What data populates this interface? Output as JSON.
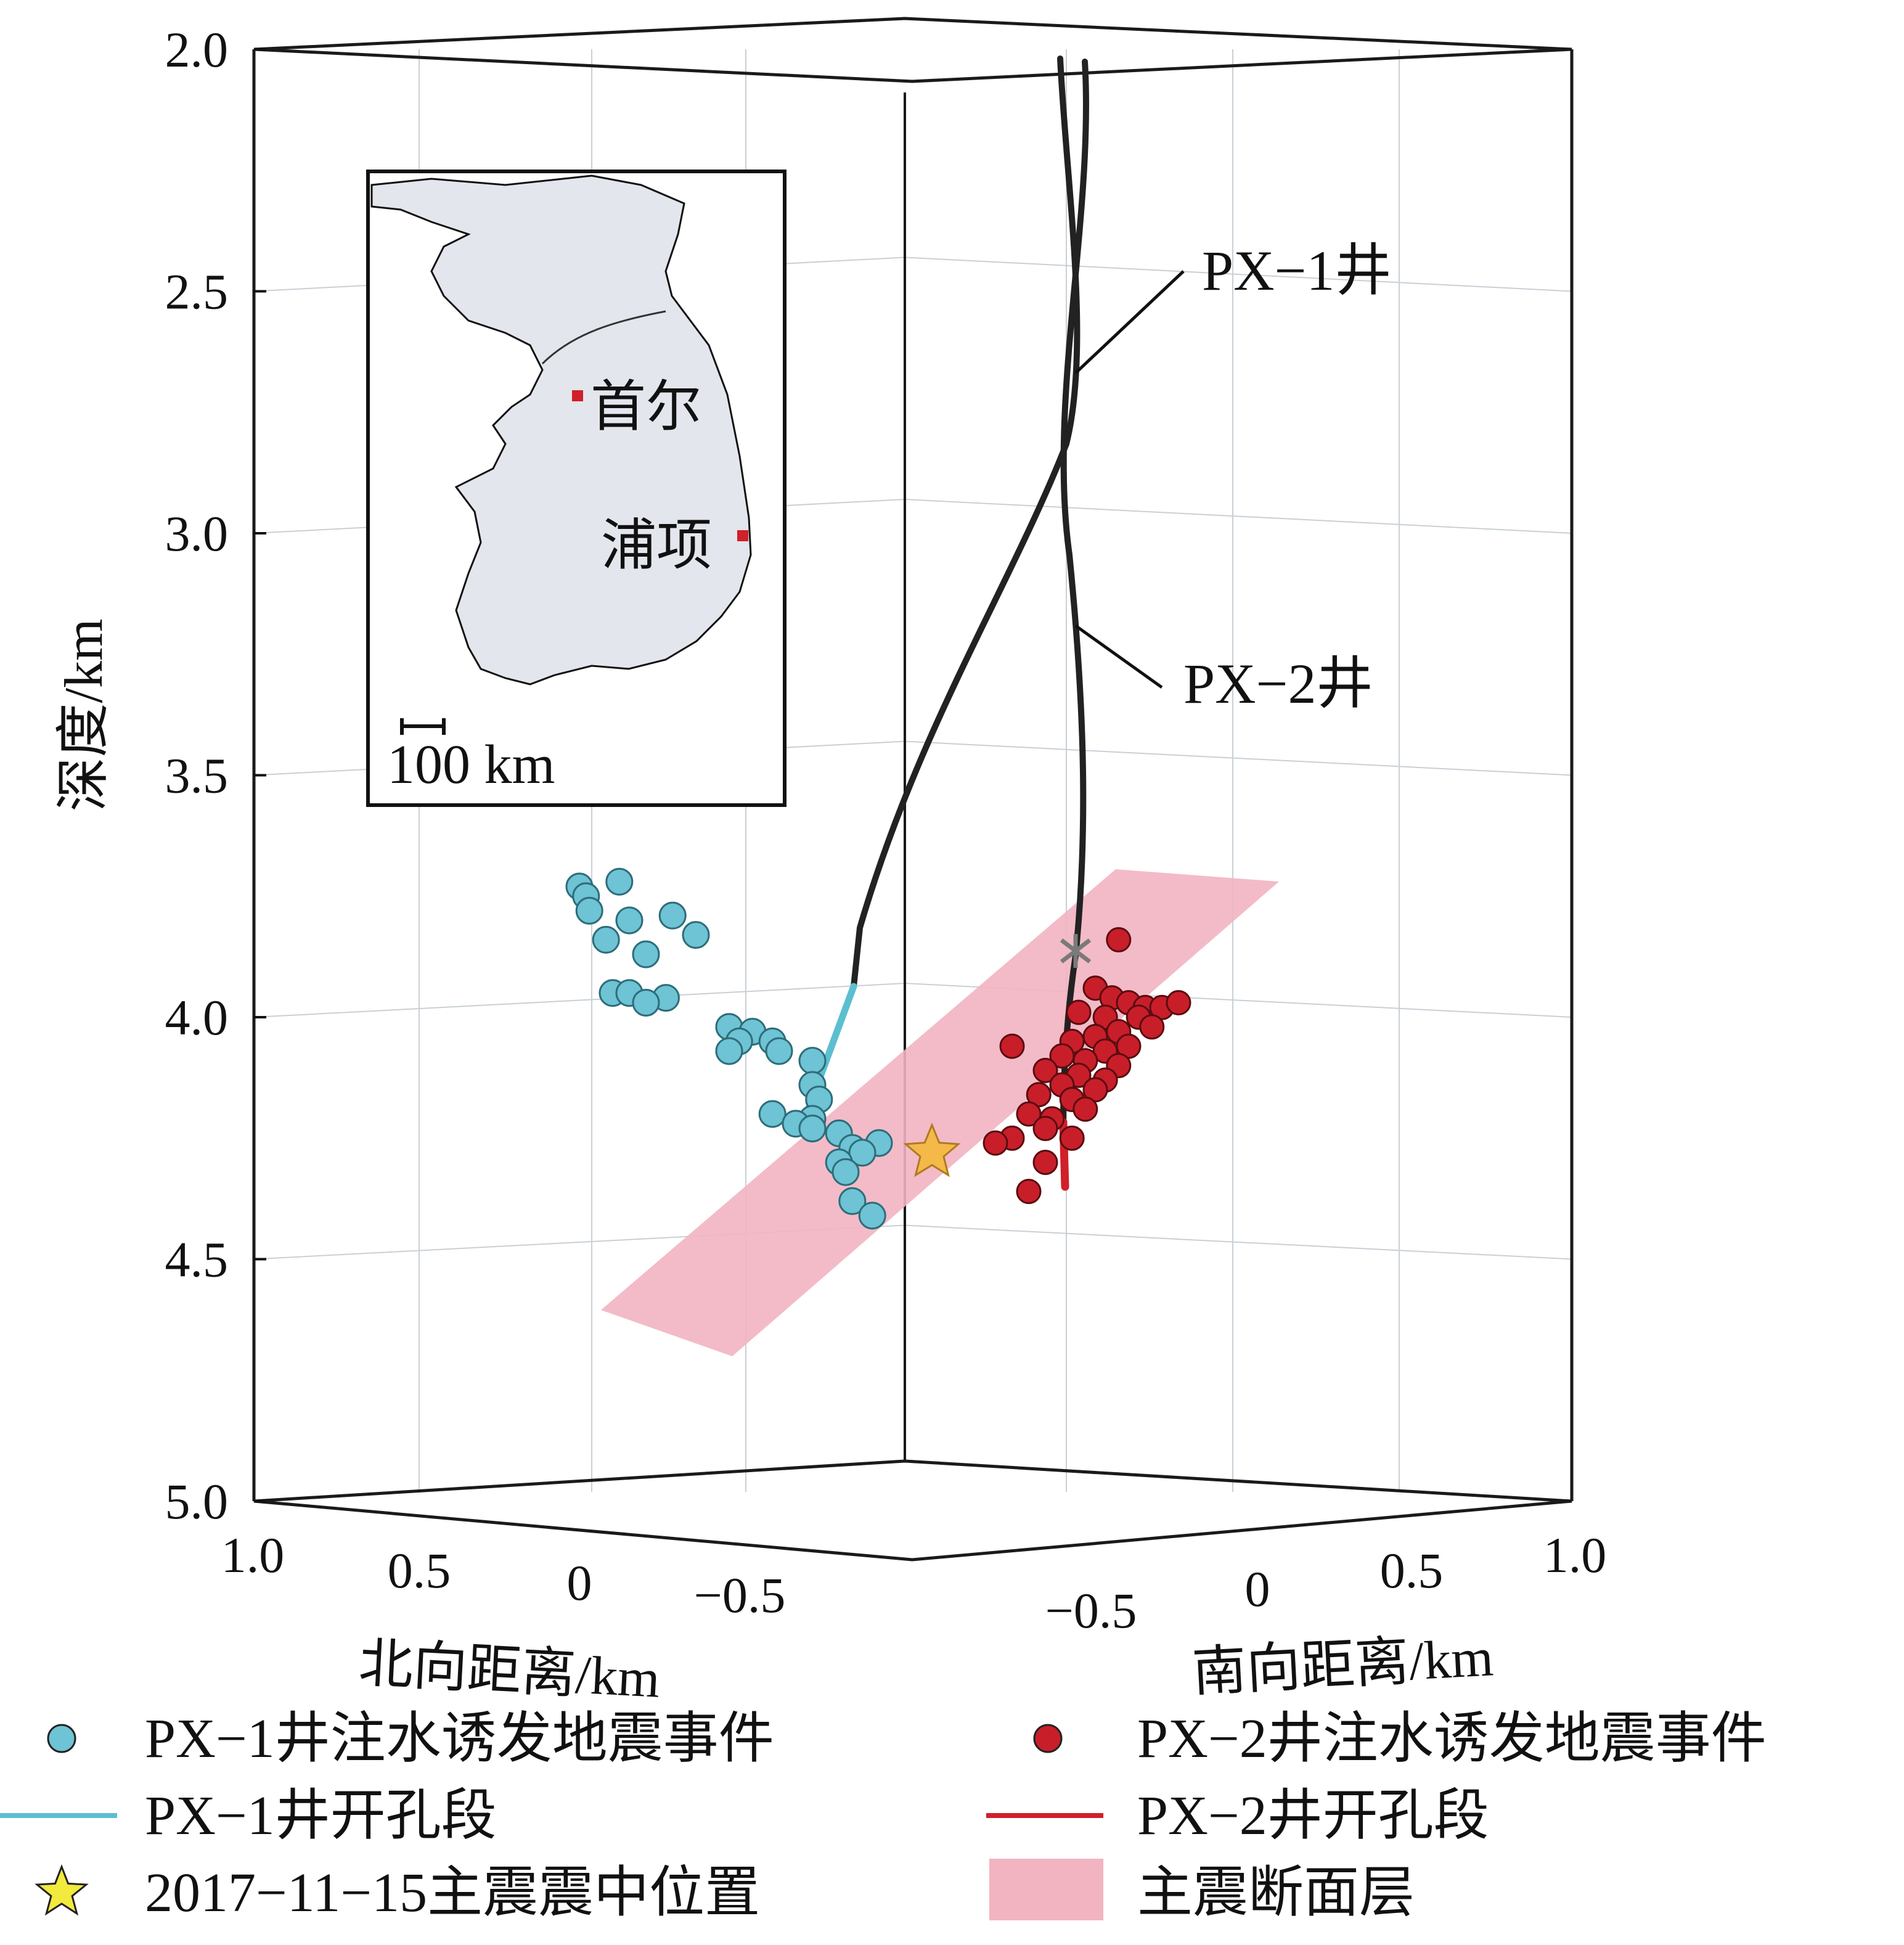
{
  "chart_data": {
    "type": "scatter",
    "projection": "3d-box",
    "z_axis": {
      "label": "深度/km",
      "range": [
        2.0,
        5.0
      ],
      "ticks": [
        "2.0",
        "2.5",
        "3.0",
        "3.5",
        "4.0",
        "4.5",
        "5.0"
      ]
    },
    "x_axis_north": {
      "label": "北向距离/km",
      "range": [
        1.0,
        -0.5
      ],
      "ticks": [
        "1.0",
        "0.5",
        "0",
        "−0.5"
      ]
    },
    "x_axis_south": {
      "label": "南向距离/km",
      "range": [
        -0.5,
        1.0
      ],
      "ticks": [
        "−0.5",
        "0",
        "0.5",
        "1.0"
      ]
    },
    "inset": {
      "cities": [
        {
          "name": "首尔",
          "color": "#d0202a"
        },
        {
          "name": "浦项",
          "color": "#d0202a"
        }
      ],
      "scale_bar": "100 km"
    },
    "wells": [
      {
        "name": "PX-1井",
        "label": "PX−1井",
        "open_hole_color": "#5bbfd0"
      },
      {
        "name": "PX-2井",
        "label": "PX−2井",
        "open_hole_color": "#d0202a"
      }
    ],
    "series": [
      {
        "name": "PX−1井注水诱发地震事件",
        "color": "#6ec3d4",
        "points": [
          [
            1.0,
            3.73
          ],
          [
            0.98,
            3.75
          ],
          [
            0.97,
            3.78
          ],
          [
            0.88,
            3.72
          ],
          [
            0.85,
            3.8
          ],
          [
            0.72,
            3.79
          ],
          [
            0.8,
            3.87
          ],
          [
            0.65,
            3.83
          ],
          [
            0.92,
            3.84
          ],
          [
            0.9,
            3.95
          ],
          [
            0.85,
            3.95
          ],
          [
            0.74,
            3.96
          ],
          [
            0.8,
            3.97
          ],
          [
            0.55,
            4.02
          ],
          [
            0.48,
            4.03
          ],
          [
            0.52,
            4.05
          ],
          [
            0.42,
            4.05
          ],
          [
            0.55,
            4.07
          ],
          [
            0.4,
            4.07
          ],
          [
            0.3,
            4.09
          ],
          [
            0.3,
            4.14
          ],
          [
            0.28,
            4.17
          ],
          [
            0.3,
            4.21
          ],
          [
            0.42,
            4.2
          ],
          [
            0.35,
            4.22
          ],
          [
            0.3,
            4.23
          ],
          [
            0.22,
            4.24
          ],
          [
            0.18,
            4.27
          ],
          [
            0.1,
            4.26
          ],
          [
            0.15,
            4.28
          ],
          [
            0.22,
            4.3
          ],
          [
            0.2,
            4.32
          ],
          [
            0.18,
            4.38
          ],
          [
            0.12,
            4.41
          ]
        ]
      },
      {
        "name": "PX−2井注水诱发地震事件",
        "color": "#c81e2a",
        "points": [
          [
            -0.62,
            3.84
          ],
          [
            -0.55,
            3.94
          ],
          [
            -0.6,
            3.96
          ],
          [
            -0.65,
            3.97
          ],
          [
            -0.7,
            3.98
          ],
          [
            -0.75,
            3.98
          ],
          [
            -0.8,
            3.97
          ],
          [
            -0.5,
            3.99
          ],
          [
            -0.58,
            4.0
          ],
          [
            -0.68,
            4.0
          ],
          [
            -0.72,
            4.02
          ],
          [
            -0.62,
            4.03
          ],
          [
            -0.55,
            4.04
          ],
          [
            -0.48,
            4.05
          ],
          [
            -0.65,
            4.06
          ],
          [
            -0.58,
            4.07
          ],
          [
            -0.3,
            4.06
          ],
          [
            -0.45,
            4.08
          ],
          [
            -0.52,
            4.09
          ],
          [
            -0.62,
            4.1
          ],
          [
            -0.4,
            4.11
          ],
          [
            -0.5,
            4.12
          ],
          [
            -0.58,
            4.13
          ],
          [
            -0.45,
            4.14
          ],
          [
            -0.55,
            4.15
          ],
          [
            -0.38,
            4.16
          ],
          [
            -0.48,
            4.17
          ],
          [
            -0.52,
            4.19
          ],
          [
            -0.35,
            4.2
          ],
          [
            -0.42,
            4.21
          ],
          [
            -0.4,
            4.23
          ],
          [
            -0.48,
            4.25
          ],
          [
            -0.3,
            4.25
          ],
          [
            -0.25,
            4.26
          ],
          [
            -0.4,
            4.3
          ],
          [
            -0.35,
            4.36
          ]
        ]
      }
    ],
    "mainshock": {
      "date": "2017-11-15",
      "depth": 4.28,
      "color": "#f5b94a"
    },
    "fault_plane": {
      "color": "#f2b4c1"
    },
    "legend": {
      "position": "bottom",
      "entries": [
        {
          "label": "PX−1井注水诱发地震事件",
          "symbol": "circle",
          "color": "#6ec3d4"
        },
        {
          "label": "PX−2井注水诱发地震事件",
          "symbol": "circle",
          "color": "#c81e2a"
        },
        {
          "label": "PX−1井开孔段",
          "symbol": "line",
          "color": "#5bbfd0"
        },
        {
          "label": "PX−2井开孔段",
          "symbol": "line",
          "color": "#d0202a"
        },
        {
          "label": "2017−11−15主震震中位置",
          "symbol": "star",
          "color": "#f2ea3c"
        },
        {
          "label": "主震断面层",
          "symbol": "rect",
          "color": "#f2b4c1"
        }
      ]
    }
  }
}
